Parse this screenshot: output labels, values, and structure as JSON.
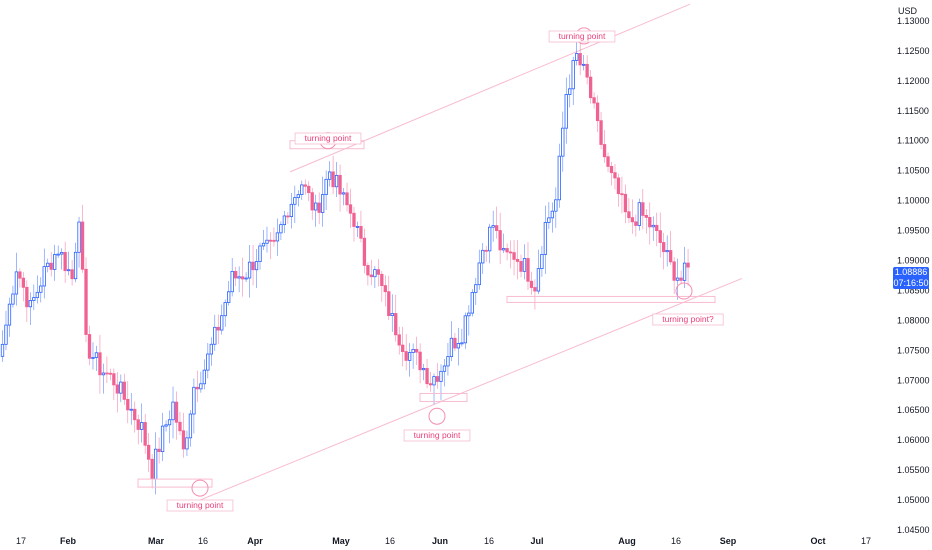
{
  "chart_data": {
    "type": "candlestick",
    "currency": "USD",
    "y_range": [
      1.045,
      1.1335
    ],
    "y_ticks": [
      "1.13000",
      "1.12500",
      "1.12000",
      "1.11500",
      "1.11000",
      "1.10500",
      "1.10000",
      "1.09500",
      "1.09000",
      "1.08500",
      "1.08000",
      "1.07500",
      "1.07000",
      "1.06500",
      "1.06000",
      "1.05500",
      "1.05000",
      "1.04500"
    ],
    "x_ticks": [
      {
        "label": "17",
        "bold": false
      },
      {
        "label": "Feb",
        "bold": true
      },
      {
        "label": "Mar",
        "bold": true
      },
      {
        "label": "16",
        "bold": false
      },
      {
        "label": "Apr",
        "bold": true
      },
      {
        "label": "May",
        "bold": true
      },
      {
        "label": "16",
        "bold": false
      },
      {
        "label": "Jun",
        "bold": true
      },
      {
        "label": "16",
        "bold": false
      },
      {
        "label": "Jul",
        "bold": true
      },
      {
        "label": "Aug",
        "bold": true
      },
      {
        "label": "16",
        "bold": false
      },
      {
        "label": "Sep",
        "bold": true
      },
      {
        "label": "Oct",
        "bold": true
      },
      {
        "label": "17",
        "bold": false
      }
    ],
    "last_price": "1.08886",
    "countdown": "07:16:50",
    "colors": {
      "up": "#2962ff",
      "down": "#f06292",
      "line": "#f8bbd0",
      "annotation": "#ec407a",
      "axis_text": "#131722"
    },
    "annotations": [
      {
        "label": "turning point",
        "kind": "circle"
      },
      {
        "label": "turning point",
        "kind": "circle"
      },
      {
        "label": "turning point",
        "kind": "circle"
      },
      {
        "label": "turning point",
        "kind": "circle"
      },
      {
        "label": "turning point?",
        "kind": "circle"
      }
    ],
    "anchor_closes": [
      [
        0,
        1.076
      ],
      [
        4,
        1.089
      ],
      [
        8,
        1.082
      ],
      [
        12,
        1.088
      ],
      [
        16,
        1.092
      ],
      [
        20,
        1.087
      ],
      [
        22,
        1.098
      ],
      [
        24,
        1.076
      ],
      [
        28,
        1.072
      ],
      [
        32,
        1.07
      ],
      [
        36,
        1.066
      ],
      [
        40,
        1.062
      ],
      [
        43,
        1.055
      ],
      [
        46,
        1.061
      ],
      [
        49,
        1.066
      ],
      [
        52,
        1.058
      ],
      [
        55,
        1.069
      ],
      [
        58,
        1.072
      ],
      [
        62,
        1.079
      ],
      [
        66,
        1.087
      ],
      [
        70,
        1.088
      ],
      [
        74,
        1.0915
      ],
      [
        78,
        1.092
      ],
      [
        82,
        1.099
      ],
      [
        86,
        1.103
      ],
      [
        90,
        1.098
      ],
      [
        94,
        1.105
      ],
      [
        98,
        1.1
      ],
      [
        101,
        1.097
      ],
      [
        104,
        1.09
      ],
      [
        108,
        1.087
      ],
      [
        112,
        1.08
      ],
      [
        116,
        1.075
      ],
      [
        120,
        1.073
      ],
      [
        123,
        1.07
      ],
      [
        126,
        1.072
      ],
      [
        129,
        1.076
      ],
      [
        132,
        1.078
      ],
      [
        135,
        1.085
      ],
      [
        138,
        1.092
      ],
      [
        141,
        1.096
      ],
      [
        144,
        1.0905
      ],
      [
        147,
        1.091
      ],
      [
        150,
        1.089
      ],
      [
        153,
        1.086
      ],
      [
        156,
        1.096
      ],
      [
        159,
        1.1
      ],
      [
        162,
        1.118
      ],
      [
        165,
        1.124
      ],
      [
        168,
        1.12
      ],
      [
        171,
        1.112
      ],
      [
        174,
        1.105
      ],
      [
        177,
        1.101
      ],
      [
        180,
        1.096
      ],
      [
        183,
        1.098
      ],
      [
        186,
        1.096
      ],
      [
        189,
        1.093
      ],
      [
        192,
        1.089
      ],
      [
        195,
        1.0868
      ],
      [
        197,
        1.0889
      ]
    ]
  }
}
